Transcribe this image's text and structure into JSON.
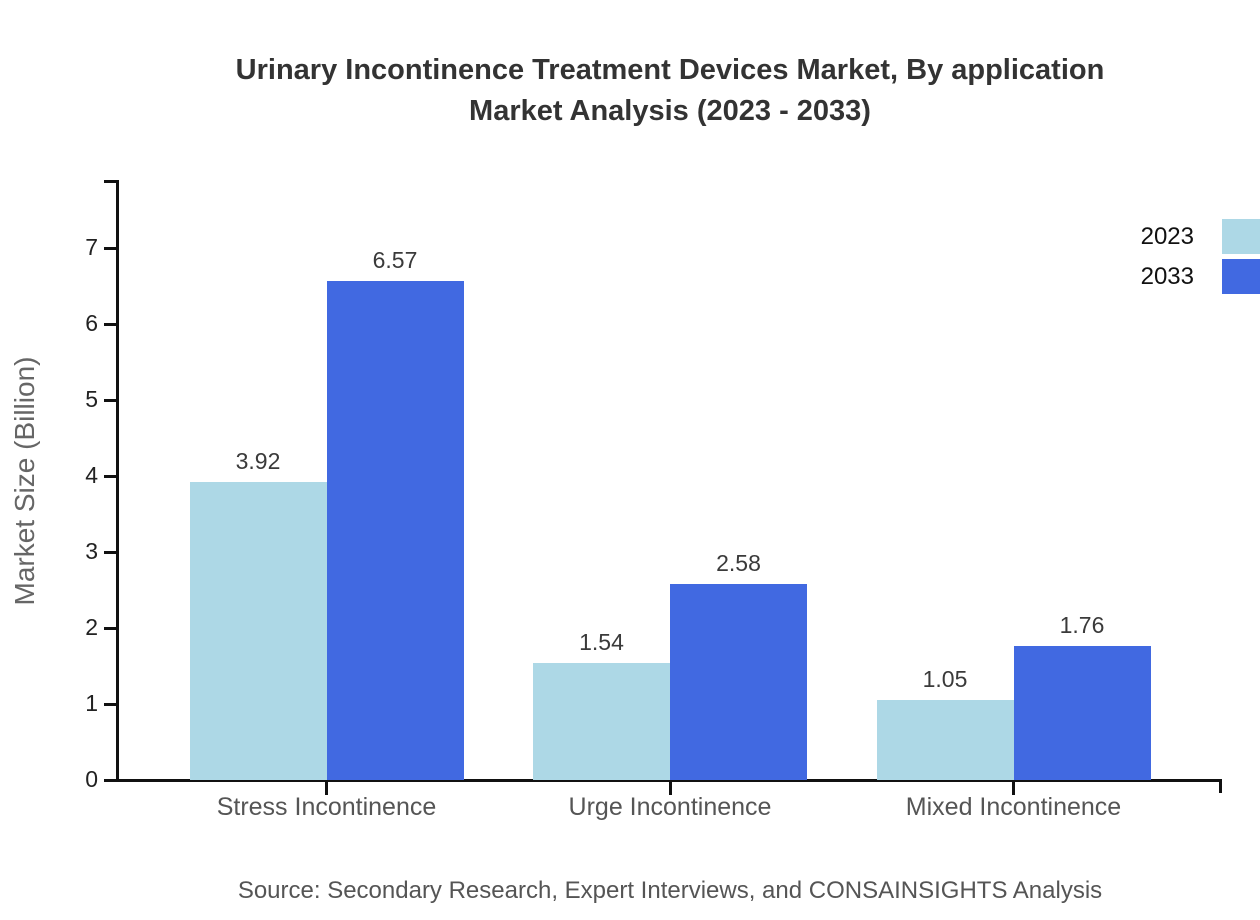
{
  "title": {
    "line1": "Urinary Incontinence Treatment Devices Market, By application",
    "line2": "Market Analysis (2023 - 2033)"
  },
  "source": "Source: Secondary Research, Expert Interviews, and CONSAINSIGHTS Analysis",
  "chart_data": {
    "type": "bar",
    "title": "Urinary Incontinence Treatment Devices Market, By application Market Analysis (2023 - 2033)",
    "categories": [
      "Stress Incontinence",
      "Urge Incontinence",
      "Mixed Incontinence"
    ],
    "series": [
      {
        "name": "2023",
        "color": "#ADD8E6",
        "values": [
          3.92,
          1.54,
          1.05
        ]
      },
      {
        "name": "2033",
        "color": "#4169E1",
        "values": [
          6.57,
          2.58,
          1.76
        ]
      }
    ],
    "xlabel": "",
    "ylabel": "Market Size (Billion)",
    "ylim": [
      0,
      7.9
    ],
    "yticks": [
      0,
      1,
      2,
      3,
      4,
      5,
      6,
      7
    ],
    "grid": false,
    "legend_position": "top-right",
    "value_labels": true,
    "axis_color": "#111111",
    "label_color": "#555555"
  }
}
